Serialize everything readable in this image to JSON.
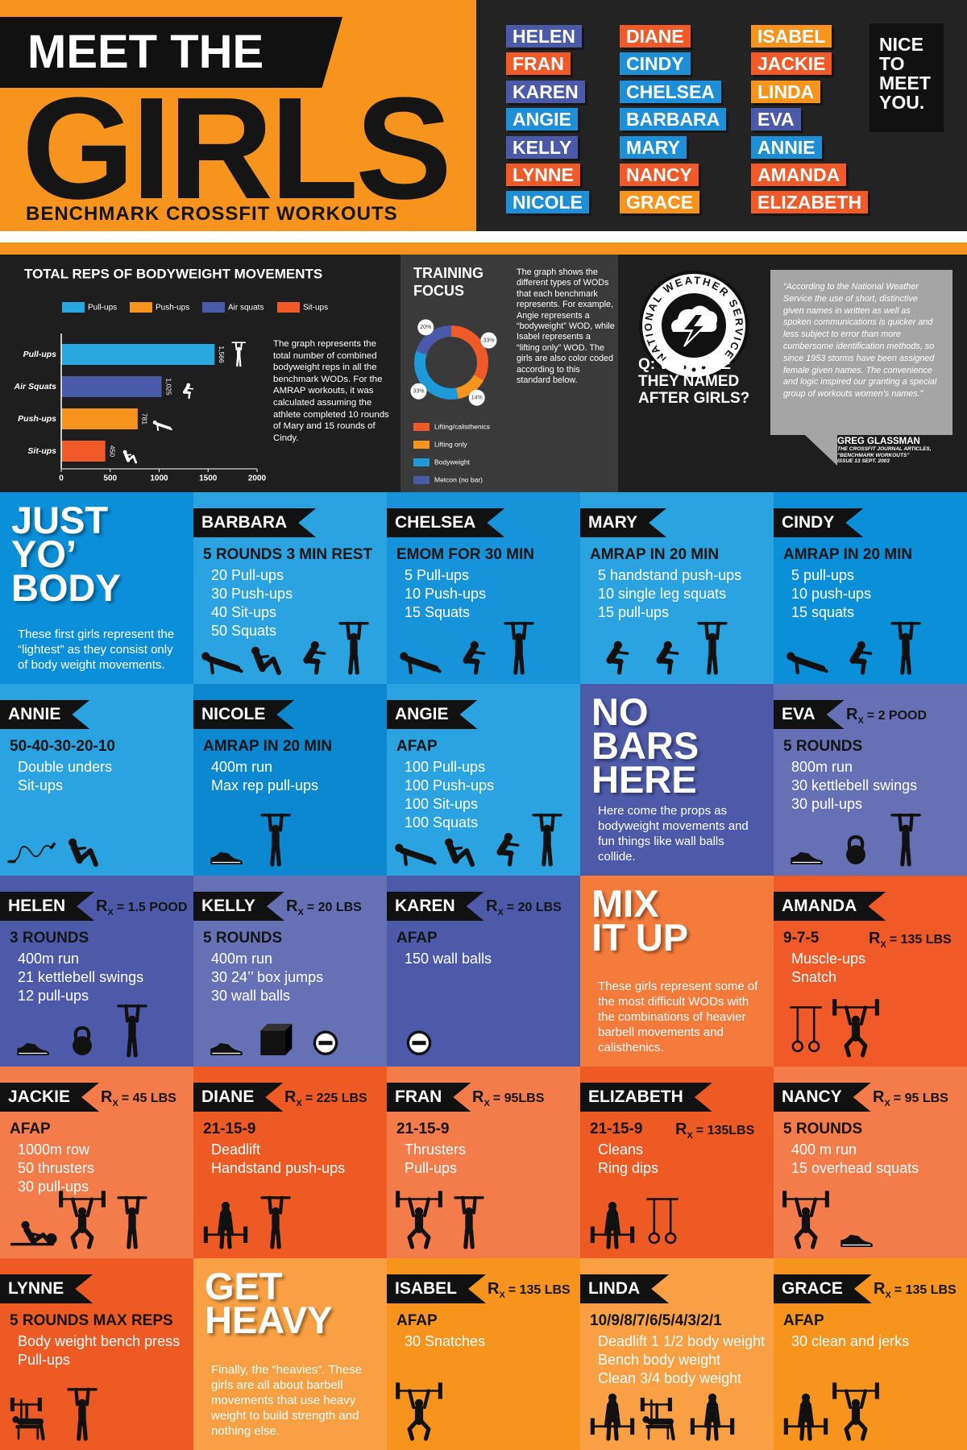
{
  "header": {
    "title_top": "MEET THE",
    "title_main": "GIRLS",
    "subtitle": "BENCHMARK CROSSFIT WORKOUTS",
    "names": [
      {
        "name": "HELEN",
        "color": "#4a5aa8"
      },
      {
        "name": "FRAN",
        "color": "#f05a28"
      },
      {
        "name": "KAREN",
        "color": "#4a5aa8"
      },
      {
        "name": "ANGIE",
        "color": "#1e8fd6"
      },
      {
        "name": "KELLY",
        "color": "#4a5aa8"
      },
      {
        "name": "LYNNE",
        "color": "#f05a28"
      },
      {
        "name": "NICOLE",
        "color": "#1e8fd6"
      },
      {
        "name": "DIANE",
        "color": "#f05a28"
      },
      {
        "name": "CINDY",
        "color": "#1e8fd6"
      },
      {
        "name": "CHELSEA",
        "color": "#1e8fd6"
      },
      {
        "name": "BARBARA",
        "color": "#1e8fd6"
      },
      {
        "name": "MARY",
        "color": "#1e8fd6"
      },
      {
        "name": "NANCY",
        "color": "#f05a28"
      },
      {
        "name": "GRACE",
        "color": "#f7941d"
      },
      {
        "name": "ISABEL",
        "color": "#f7941d"
      },
      {
        "name": "JACKIE",
        "color": "#f05a28"
      },
      {
        "name": "LINDA",
        "color": "#f7941d"
      },
      {
        "name": "EVA",
        "color": "#4a5aa8"
      },
      {
        "name": "ANNIE",
        "color": "#1e8fd6"
      },
      {
        "name": "AMANDA",
        "color": "#f05a28"
      },
      {
        "name": "ELIZABETH",
        "color": "#f05a28"
      }
    ],
    "greeting": [
      "NICE",
      "TO",
      "MEET",
      "YOU."
    ]
  },
  "chart_data": [
    {
      "type": "bar",
      "orientation": "horizontal",
      "title": "TOTAL REPS OF BODYWEIGHT MOVEMENTS",
      "legend": [
        {
          "name": "Pull-ups",
          "color": "#29a8e0"
        },
        {
          "name": "Push-ups",
          "color": "#f7941d"
        },
        {
          "name": "Air squats",
          "color": "#4a5aa8"
        },
        {
          "name": "Sit-ups",
          "color": "#f05a28"
        }
      ],
      "categories": [
        "Pull-ups",
        "Air Squats",
        "Push-ups",
        "Sit-ups"
      ],
      "values": [
        1566,
        1025,
        781,
        450
      ],
      "value_labels": [
        "1,566",
        "1,025",
        "781",
        "450"
      ],
      "colors": [
        "#29a8e0",
        "#4a5aa8",
        "#f7941d",
        "#f05a28"
      ],
      "xlim": [
        0,
        2000
      ],
      "xticks": [
        0,
        500,
        1000,
        1500,
        2000
      ],
      "note": "The graph represents the total number of combined bodyweight reps in all the benchmark WODs. For the AMRAP workouts, it was calculated assuming the athlete completed 10 rounds of Mary and 15 rounds of Cindy."
    },
    {
      "type": "pie",
      "donut": true,
      "title": "TRAINING FOCUS",
      "categories": [
        "Lifting/calisthenics",
        "Lifting only",
        "Bodyweight",
        "Metcon (no bar)"
      ],
      "values": [
        33,
        14,
        33,
        20
      ],
      "value_labels": [
        "33%",
        "14%",
        "33%",
        "20%"
      ],
      "colors": [
        "#f05a28",
        "#f7941d",
        "#1e9ad8",
        "#4a5aa8"
      ],
      "note": "The graph shows the different types of WODs that each benchmark represents. For example, Angie represents a “bodyweight” WOD, while Isabel represents a “lifting only” WOD. The girls are also color coded according to this standard below."
    }
  ],
  "question": {
    "logo_text": "NATIONAL WEATHER SERVICE",
    "text": "Q: WHY ARE THEY NAMED AFTER GIRLS?",
    "quote": "“According to the National Weather Service the use of short, distinctive given names in written as well as spoken communications is quicker and less subject to error than more cumbersome identification methods, so since 1953 storms have been assigned female given names. The convenience and logic inspired our granting a special group of workouts women’s names.”",
    "author": "GREG GLASSMAN",
    "source": [
      "THE CROSSFIT JOURNAL ARTICLES,",
      "“BENCHMARK WORKOUTS”",
      "ISSUE 13 SEPT. 2003"
    ]
  },
  "rx_symbol": "R",
  "rx_subscript": "X",
  "tiles": [
    {
      "title": [
        "JUST",
        "YO’",
        "BODY"
      ],
      "text": "These first girls represent the “lightest” as they consist only of body weight movements.",
      "color": "#0b8fd8"
    },
    {
      "name": "BARBARA",
      "heading": "5 ROUNDS 3 MIN REST",
      "lines": [
        "20 Pull-ups",
        "30 Push-ups",
        "40 Sit-ups",
        "50 Squats"
      ],
      "color": "#2aa3e0"
    },
    {
      "name": "CHELSEA",
      "heading": "EMOM FOR 30 MIN",
      "lines": [
        "5 Pull-ups",
        "10 Push-ups",
        "15 Squats"
      ],
      "color": "#1793da"
    },
    {
      "name": "MARY",
      "heading": "AMRAP IN 20 MIN",
      "lines": [
        "5 handstand push-ups",
        "10 single leg squats",
        "15 pull-ups"
      ],
      "color": "#2aa3e0"
    },
    {
      "name": "CINDY",
      "heading": "AMRAP IN 20 MIN",
      "lines": [
        "5 pull-ups",
        "10 push-ups",
        "15 squats"
      ],
      "color": "#0b8fd8"
    },
    {
      "name": "ANNIE",
      "heading": "50-40-30-20-10",
      "lines": [
        "Double unders",
        "Sit-ups"
      ],
      "color": "#2aa3e0"
    },
    {
      "name": "NICOLE",
      "heading": "AMRAP IN 20 MIN",
      "lines": [
        "400m run",
        "Max rep pull-ups"
      ],
      "color": "#0b88cf"
    },
    {
      "name": "ANGIE",
      "heading": "AFAP",
      "lines": [
        "100 Pull-ups",
        "100 Push-ups",
        "100 Sit-ups",
        "100 Squats"
      ],
      "color": "#2aa3e0"
    },
    {
      "title": [
        "NO",
        "BARS",
        "HERE"
      ],
      "text": "Here come the props as bodyweight movements and fun things like wall balls collide.",
      "color": "#4d5aa9"
    },
    {
      "name": "EVA",
      "rx": "= 2 POOD",
      "heading": "5 ROUNDS",
      "lines": [
        "800m run",
        "30 kettlebell swings",
        "30 pull-ups"
      ],
      "color": "#6670b5"
    },
    {
      "name": "HELEN",
      "rx": "= 1.5 POOD",
      "heading": "3 ROUNDS",
      "lines": [
        "400m run",
        "21 kettlebell swings",
        "12 pull-ups"
      ],
      "color": "#4d5aa9"
    },
    {
      "name": "KELLY",
      "rx": "= 20 LBS",
      "heading": "5 ROUNDS",
      "lines": [
        "400m run",
        "30 24’’ box jumps",
        "30 wall balls"
      ],
      "color": "#6670b5"
    },
    {
      "name": "KAREN",
      "rx": "= 20 LBS",
      "heading": "AFAP",
      "lines": [
        "150 wall balls"
      ],
      "color": "#4d5aa9"
    },
    {
      "title": [
        "MIX",
        "IT UP"
      ],
      "text": "These girls represent some of the most difficult WODs with the combinations of heavier barbell movements and calisthenics.",
      "color": "#f47b3b"
    },
    {
      "name": "AMANDA",
      "rx": "= 135 LBS",
      "heading": "9-7-5",
      "lines": [
        "Muscle-ups",
        "Snatch"
      ],
      "color": "#f05a28"
    },
    {
      "name": "JACKIE",
      "rx": "= 45 LBS",
      "heading": "AFAP",
      "lines": [
        "1000m row",
        "50 thrusters",
        "30 pull-ups"
      ],
      "color": "#f47b4a"
    },
    {
      "name": "DIANE",
      "rx": "= 225 LBS",
      "heading": "21-15-9",
      "lines": [
        "Deadlift",
        "Handstand push-ups"
      ],
      "color": "#ee5a24"
    },
    {
      "name": "FRAN",
      "rx": "= 95LBS",
      "heading": "21-15-9",
      "lines": [
        "Thrusters",
        "Pull-ups"
      ],
      "color": "#f47b4a"
    },
    {
      "name": "ELIZABETH",
      "rx": "= 135LBS",
      "heading": "21-15-9",
      "lines": [
        "Cleans",
        "Ring dips"
      ],
      "color": "#ee5a24"
    },
    {
      "name": "NANCY",
      "rx": "= 95 LBS",
      "heading": "5 ROUNDS",
      "lines": [
        "400 m run",
        "15 overhead squats"
      ],
      "color": "#f47b4a"
    },
    {
      "name": "LYNNE",
      "heading": "5 ROUNDS MAX REPS",
      "lines": [
        "Body weight bench press",
        "Pull-ups"
      ],
      "color": "#ee5a24"
    },
    {
      "title": [
        "GET",
        "HEAVY"
      ],
      "text": "Finally, the “heavies”. These girls are all about barbell movements that use heavy weight to build strength and nothing else.",
      "color": "#f8a043"
    },
    {
      "name": "ISABEL",
      "rx": "= 135 LBS",
      "heading": "AFAP",
      "lines": [
        "30 Snatches"
      ],
      "color": "#f7941d"
    },
    {
      "name": "LINDA",
      "heading": "10/9/8/7/6/5/4/3/2/1",
      "lines": [
        "Deadlift 1 1/2 body weight",
        "Bench body weight",
        "Clean 3/4 body weight"
      ],
      "color": "#f8a043"
    },
    {
      "name": "GRACE",
      "rx": "= 135 LBS",
      "heading": "AFAP",
      "lines": [
        "30 clean and jerks"
      ],
      "color": "#f7941d"
    }
  ]
}
